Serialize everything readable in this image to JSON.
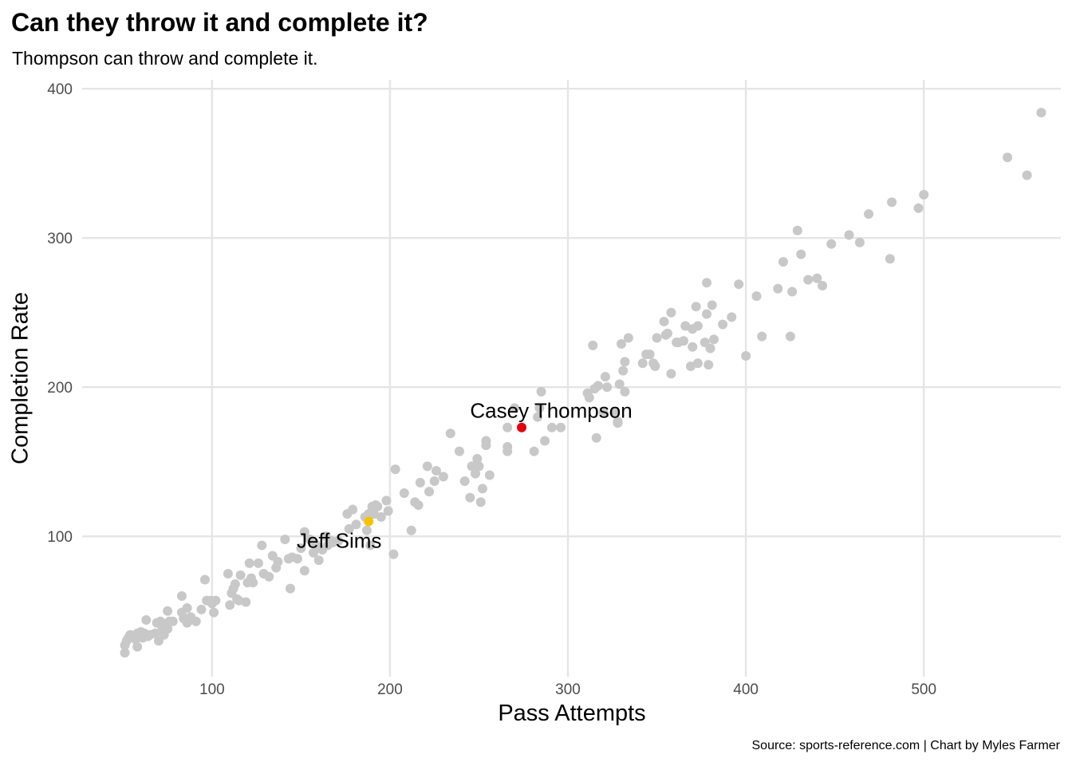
{
  "chart_data": {
    "type": "scatter",
    "title": "Can they throw it and complete it?",
    "subtitle": "Thompson can throw and complete it.",
    "caption": "Source: sports-reference.com | Chart by Myles Farmer",
    "xlabel": "Pass Attempts",
    "ylabel": "Completion Rate",
    "xlim": [
      27,
      577
    ],
    "ylim": [
      6,
      406
    ],
    "x_ticks": [
      100,
      200,
      300,
      400,
      500
    ],
    "y_ticks": [
      100,
      200,
      300,
      400
    ],
    "grid": true,
    "colors": {
      "background_points": "#c8c8c8",
      "casey_thompson": "#e3000f",
      "jeff_sims": "#f7c300",
      "grid": "#e5e5e5",
      "tick_text": "#4d4d4d"
    },
    "series": [
      {
        "values": [
          [
            51,
            22
          ],
          [
            51,
            27
          ],
          [
            52,
            30
          ],
          [
            53,
            32
          ],
          [
            54,
            34
          ],
          [
            56,
            33
          ],
          [
            57,
            31
          ],
          [
            58,
            35
          ],
          [
            58,
            26
          ],
          [
            60,
            36
          ],
          [
            61,
            32
          ],
          [
            62,
            35
          ],
          [
            63,
            44
          ],
          [
            64,
            33
          ],
          [
            65,
            34
          ],
          [
            68,
            35
          ],
          [
            69,
            42
          ],
          [
            70,
            30
          ],
          [
            71,
            41
          ],
          [
            71,
            43
          ],
          [
            72,
            37
          ],
          [
            73,
            34
          ],
          [
            74,
            40
          ],
          [
            75,
            50
          ],
          [
            75,
            38
          ],
          [
            76,
            43
          ],
          [
            78,
            43
          ],
          [
            83,
            60
          ],
          [
            83,
            49
          ],
          [
            84,
            45
          ],
          [
            86,
            52
          ],
          [
            86,
            42
          ],
          [
            88,
            46
          ],
          [
            91,
            43
          ],
          [
            94,
            51
          ],
          [
            96,
            71
          ],
          [
            97,
            57
          ],
          [
            99,
            57
          ],
          [
            100,
            55
          ],
          [
            101,
            49
          ],
          [
            102,
            57
          ],
          [
            109,
            75
          ],
          [
            110,
            54
          ],
          [
            111,
            62
          ],
          [
            112,
            65
          ],
          [
            113,
            68
          ],
          [
            114,
            58
          ],
          [
            115,
            57
          ],
          [
            116,
            74
          ],
          [
            119,
            56
          ],
          [
            120,
            69
          ],
          [
            121,
            82
          ],
          [
            122,
            72
          ],
          [
            123,
            69
          ],
          [
            126,
            82
          ],
          [
            128,
            94
          ],
          [
            129,
            75
          ],
          [
            132,
            73
          ],
          [
            134,
            87
          ],
          [
            136,
            79
          ],
          [
            137,
            83
          ],
          [
            141,
            98
          ],
          [
            143,
            85
          ],
          [
            144,
            65
          ],
          [
            145,
            86
          ],
          [
            148,
            85
          ],
          [
            150,
            92
          ],
          [
            152,
            77
          ],
          [
            152,
            103
          ],
          [
            155,
            98
          ],
          [
            157,
            89
          ],
          [
            158,
            95
          ],
          [
            159,
            93
          ],
          [
            160,
            84
          ],
          [
            162,
            91
          ],
          [
            164,
            100
          ],
          [
            165,
            94
          ],
          [
            167,
            97
          ],
          [
            168,
            96
          ],
          [
            171,
            97
          ],
          [
            176,
            115
          ],
          [
            177,
            105
          ],
          [
            179,
            118
          ],
          [
            181,
            108
          ],
          [
            186,
            113
          ],
          [
            187,
            104
          ],
          [
            188,
            115
          ],
          [
            189,
            94
          ],
          [
            190,
            120
          ],
          [
            191,
            115
          ],
          [
            192,
            121
          ],
          [
            193,
            120
          ],
          [
            195,
            113
          ],
          [
            198,
            124
          ],
          [
            199,
            117
          ],
          [
            202,
            88
          ],
          [
            203,
            145
          ],
          [
            208,
            129
          ],
          [
            212,
            104
          ],
          [
            214,
            123
          ],
          [
            216,
            121
          ],
          [
            217,
            136
          ],
          [
            221,
            147
          ],
          [
            222,
            130
          ],
          [
            225,
            137
          ],
          [
            226,
            144
          ],
          [
            230,
            140
          ],
          [
            234,
            169
          ],
          [
            239,
            157
          ],
          [
            242,
            137
          ],
          [
            245,
            126
          ],
          [
            246,
            147
          ],
          [
            248,
            142
          ],
          [
            249,
            152
          ],
          [
            250,
            147
          ],
          [
            251,
            123
          ],
          [
            252,
            132
          ],
          [
            254,
            164
          ],
          [
            254,
            161
          ],
          [
            256,
            141
          ],
          [
            266,
            173
          ],
          [
            266,
            160
          ],
          [
            266,
            157
          ],
          [
            270,
            186
          ],
          [
            281,
            157
          ],
          [
            283,
            180
          ],
          [
            284,
            186
          ],
          [
            285,
            197
          ],
          [
            287,
            164
          ],
          [
            291,
            173
          ],
          [
            296,
            173
          ],
          [
            311,
            196
          ],
          [
            312,
            193
          ],
          [
            314,
            228
          ],
          [
            315,
            199
          ],
          [
            316,
            166
          ],
          [
            317,
            201
          ],
          [
            320,
            183
          ],
          [
            321,
            207
          ],
          [
            322,
            200
          ],
          [
            326,
            183
          ],
          [
            328,
            177
          ],
          [
            328,
            176
          ],
          [
            329,
            202
          ],
          [
            330,
            229
          ],
          [
            331,
            211
          ],
          [
            332,
            217
          ],
          [
            332,
            197
          ],
          [
            334,
            233
          ],
          [
            342,
            216
          ],
          [
            344,
            222
          ],
          [
            346,
            222
          ],
          [
            348,
            216
          ],
          [
            349,
            214
          ],
          [
            350,
            233
          ],
          [
            354,
            244
          ],
          [
            355,
            235
          ],
          [
            356,
            236
          ],
          [
            358,
            209
          ],
          [
            358,
            250
          ],
          [
            361,
            230
          ],
          [
            362,
            230
          ],
          [
            365,
            231
          ],
          [
            366,
            241
          ],
          [
            369,
            214
          ],
          [
            370,
            239
          ],
          [
            370,
            227
          ],
          [
            372,
            254
          ],
          [
            373,
            241
          ],
          [
            373,
            216
          ],
          [
            377,
            230
          ],
          [
            378,
            249
          ],
          [
            378,
            270
          ],
          [
            379,
            215
          ],
          [
            380,
            226
          ],
          [
            381,
            255
          ],
          [
            382,
            232
          ],
          [
            387,
            242
          ],
          [
            392,
            247
          ],
          [
            396,
            269
          ],
          [
            400,
            221
          ],
          [
            406,
            261
          ],
          [
            409,
            234
          ],
          [
            418,
            266
          ],
          [
            421,
            284
          ],
          [
            425,
            234
          ],
          [
            426,
            264
          ],
          [
            429,
            305
          ],
          [
            431,
            289
          ],
          [
            435,
            272
          ],
          [
            440,
            273
          ],
          [
            443,
            268
          ],
          [
            448,
            296
          ],
          [
            458,
            302
          ],
          [
            464,
            297
          ],
          [
            469,
            316
          ],
          [
            481,
            286
          ],
          [
            482,
            324
          ],
          [
            497,
            320
          ],
          [
            500,
            329
          ],
          [
            547,
            354
          ],
          [
            558,
            342
          ],
          [
            566,
            384
          ]
        ]
      },
      {
        "name": "Casey Thompson",
        "values": [
          [
            274,
            173
          ]
        ]
      },
      {
        "name": "Jeff Sims",
        "values": [
          [
            188,
            110
          ]
        ]
      }
    ],
    "annotations": [
      "Casey Thompson",
      "Jeff Sims"
    ]
  }
}
